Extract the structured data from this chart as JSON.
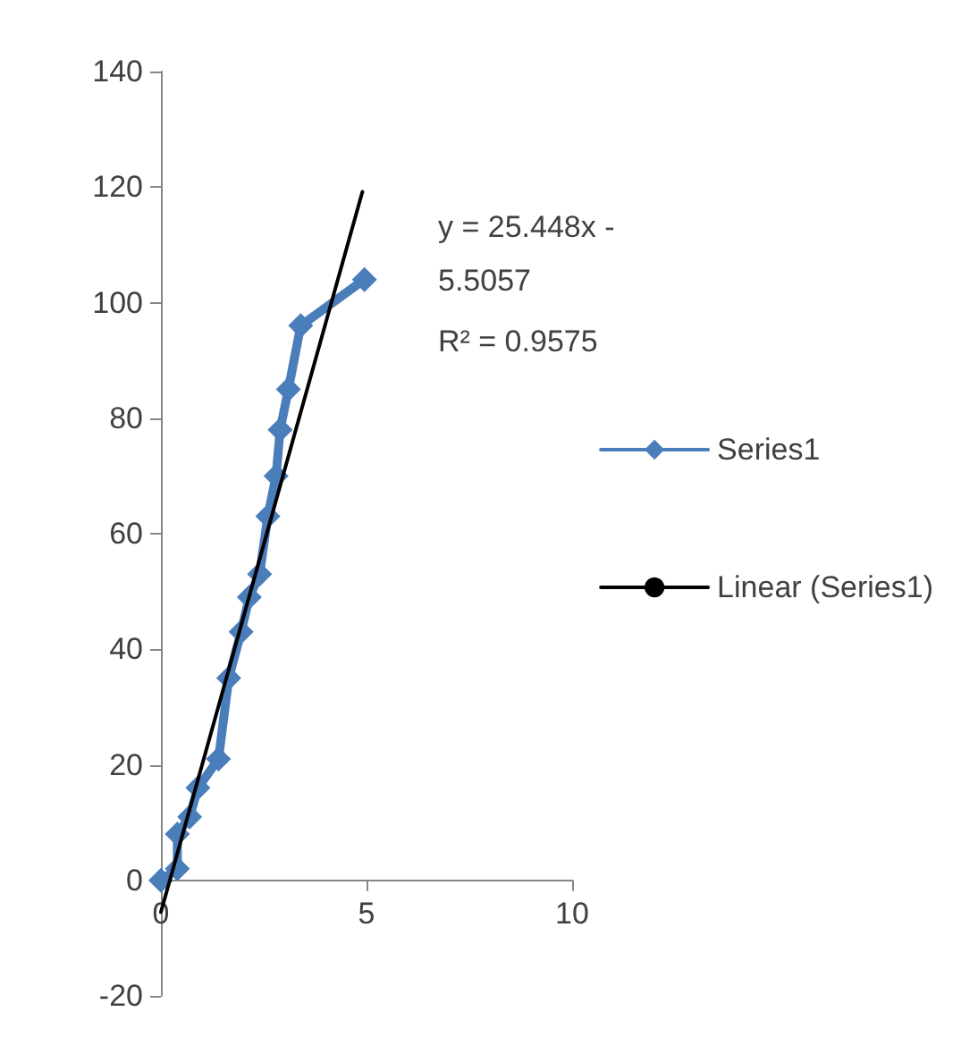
{
  "chart_data": {
    "type": "line",
    "x": [
      0,
      0.4,
      0.4,
      0.7,
      0.9,
      1.4,
      1.65,
      1.95,
      2.15,
      2.4,
      2.6,
      2.8,
      2.9,
      3.1,
      3.4,
      4.95
    ],
    "series": [
      {
        "name": "Series1",
        "color": "#4a7ebb",
        "marker": "diamond",
        "values": [
          0,
          2,
          8,
          11,
          16,
          21,
          35,
          43,
          49,
          53,
          63,
          70,
          78,
          85,
          96,
          104
        ]
      },
      {
        "name": "Linear (Series1)",
        "color": "#000000",
        "marker": "none",
        "x": [
          0,
          4.9
        ],
        "values": [
          -5.5,
          119.2
        ]
      }
    ],
    "xlim": [
      0,
      10
    ],
    "xticks": [
      0,
      5,
      10
    ],
    "ylim": [
      -20,
      140
    ],
    "yticks": [
      -20,
      0,
      20,
      40,
      60,
      80,
      100,
      120,
      140
    ],
    "annotations": [
      "y = 25.448x - 5.5057",
      "R² = 0.9575"
    ],
    "legend": "right",
    "grid": false
  }
}
